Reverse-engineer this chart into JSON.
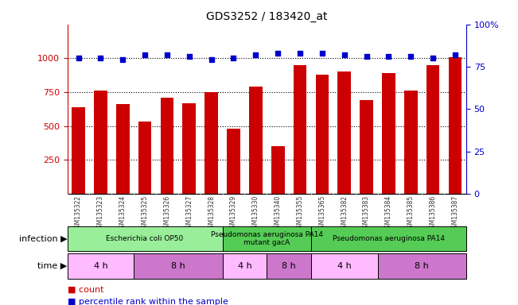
{
  "title": "GDS3252 / 183420_at",
  "samples": [
    "GSM135322",
    "GSM135323",
    "GSM135324",
    "GSM135325",
    "GSM135326",
    "GSM135327",
    "GSM135328",
    "GSM135329",
    "GSM135330",
    "GSM135340",
    "GSM135355",
    "GSM135365",
    "GSM135382",
    "GSM135383",
    "GSM135384",
    "GSM135385",
    "GSM135386",
    "GSM135387"
  ],
  "counts": [
    640,
    760,
    660,
    530,
    710,
    670,
    750,
    480,
    790,
    350,
    950,
    880,
    900,
    690,
    890,
    760,
    950,
    1010
  ],
  "percentiles": [
    80,
    80,
    79,
    82,
    82,
    81,
    79,
    80,
    82,
    83,
    83,
    83,
    82,
    81,
    81,
    81,
    80,
    82
  ],
  "bar_color": "#cc0000",
  "dot_color": "#0000cc",
  "ylim_left": [
    0,
    1250
  ],
  "ylim_right": [
    0,
    100
  ],
  "yticks_left": [
    250,
    500,
    750,
    1000
  ],
  "yticks_right": [
    0,
    25,
    50,
    75,
    100
  ],
  "infection_groups": [
    {
      "label": "Escherichia coli OP50",
      "start": 0,
      "end": 7,
      "color": "#99ee99"
    },
    {
      "label": "Pseudomonas aeruginosa PA14\nmutant gacA",
      "start": 7,
      "end": 11,
      "color": "#55cc55"
    },
    {
      "label": "Pseudomonas aeruginosa PA14",
      "start": 11,
      "end": 18,
      "color": "#55cc55"
    }
  ],
  "time_groups": [
    {
      "label": "4 h",
      "start": 0,
      "end": 3,
      "color": "#ffbbff"
    },
    {
      "label": "8 h",
      "start": 3,
      "end": 7,
      "color": "#cc77cc"
    },
    {
      "label": "4 h",
      "start": 7,
      "end": 9,
      "color": "#ffbbff"
    },
    {
      "label": "8 h",
      "start": 9,
      "end": 11,
      "color": "#cc77cc"
    },
    {
      "label": "4 h",
      "start": 11,
      "end": 14,
      "color": "#ffbbff"
    },
    {
      "label": "8 h",
      "start": 14,
      "end": 18,
      "color": "#cc77cc"
    }
  ],
  "xlabel_color": "#333333",
  "left_axis_color": "#cc0000",
  "right_axis_color": "#0000cc",
  "background_color": "#ffffff",
  "tick_bg_color": "#cccccc",
  "grid_color": "#000000",
  "infection_label": "infection",
  "time_label": "time",
  "legend_count_label": "count",
  "legend_pct_label": "percentile rank within the sample"
}
